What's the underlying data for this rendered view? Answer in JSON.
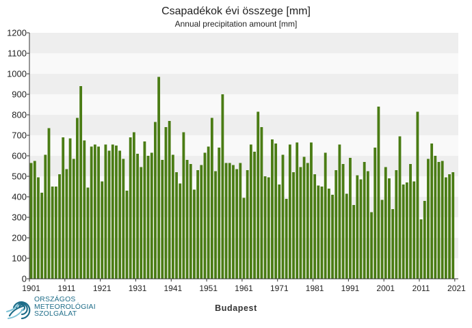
{
  "title": "Csapadékok évi összege [mm]",
  "subtitle": "Annual precipitation amount [mm]",
  "location": "Budapest",
  "logo": {
    "lines": [
      "ORSZÁGOS",
      "METEOROLÓGIAI",
      "SZOLGÁLAT"
    ],
    "color": "#1d6c88"
  },
  "colors": {
    "bar": "#4a7c14",
    "bar_edge": "#3b6610",
    "band_light": "#f9f9f9",
    "band_dark": "#eeeeee"
  },
  "chart_data": {
    "type": "bar",
    "title": "Csapadékok évi összege [mm]",
    "subtitle": "Annual precipitation amount [mm]",
    "xlabel": "Budapest",
    "ylabel": "",
    "ylim": [
      0,
      1200
    ],
    "yticks": [
      0,
      100,
      200,
      300,
      400,
      500,
      600,
      700,
      800,
      900,
      1000,
      1100,
      1200
    ],
    "xticks": [
      1901,
      1911,
      1921,
      1931,
      1941,
      1951,
      1961,
      1971,
      1981,
      1991,
      2001,
      2011,
      2021
    ],
    "xlim": [
      1900.5,
      2021.5
    ],
    "grid": "horizontal bands",
    "x_start": 1901,
    "values": [
      565,
      575,
      495,
      420,
      605,
      735,
      450,
      450,
      510,
      690,
      535,
      685,
      585,
      785,
      940,
      675,
      445,
      645,
      655,
      645,
      475,
      655,
      625,
      655,
      650,
      625,
      585,
      430,
      690,
      715,
      610,
      545,
      670,
      600,
      615,
      765,
      985,
      580,
      740,
      770,
      605,
      520,
      465,
      715,
      580,
      560,
      435,
      530,
      555,
      615,
      645,
      785,
      525,
      640,
      900,
      565,
      565,
      555,
      535,
      565,
      395,
      530,
      655,
      620,
      815,
      740,
      500,
      495,
      680,
      660,
      460,
      605,
      390,
      655,
      520,
      665,
      545,
      595,
      565,
      665,
      510,
      455,
      450,
      615,
      440,
      410,
      530,
      655,
      560,
      415,
      590,
      360,
      505,
      485,
      570,
      525,
      325,
      640,
      840,
      385,
      545,
      490,
      340,
      530,
      695,
      460,
      470,
      560,
      475,
      815,
      290,
      380,
      585,
      660,
      600,
      570,
      575,
      495,
      510,
      520
    ]
  }
}
